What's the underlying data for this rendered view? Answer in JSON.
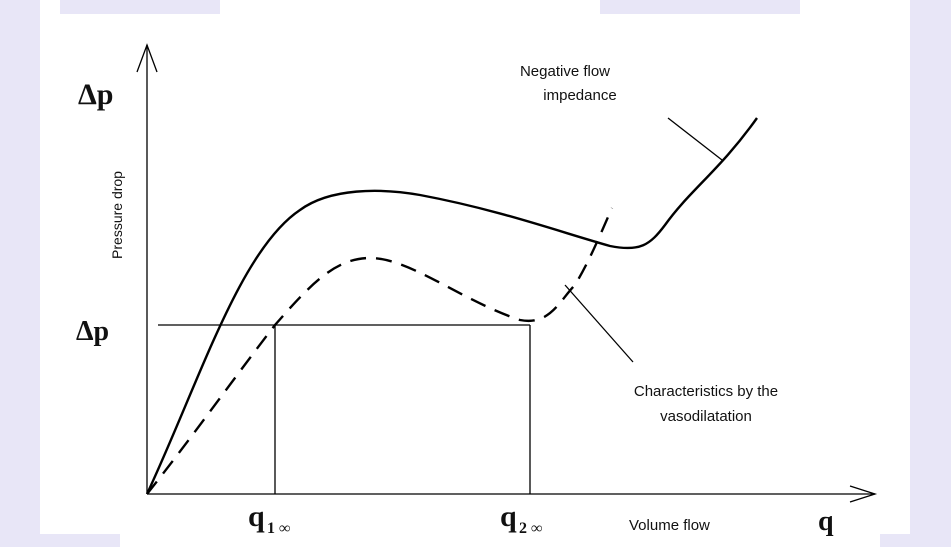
{
  "diagram": {
    "y_axis_symbol": "Δp",
    "y_axis_label": "Pressure drop",
    "level_label": "Δp",
    "q1": {
      "symbol": "q",
      "subscript": "1 ∞"
    },
    "q2": {
      "symbol": "q",
      "subscript": "2 ∞"
    },
    "x_axis_label": "Volume flow",
    "x_axis_symbol": "q",
    "annotation_top": [
      "Negative flow",
      "impedance"
    ],
    "annotation_bottom": [
      "Characteristics by the",
      "vasodilatation"
    ]
  }
}
